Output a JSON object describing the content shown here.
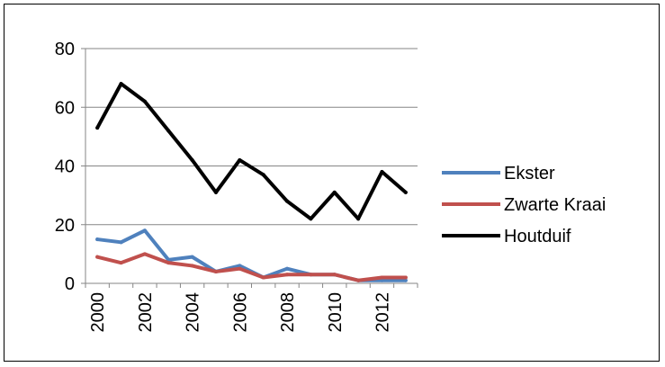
{
  "chart_data": {
    "type": "line",
    "x": [
      2000,
      2001,
      2002,
      2003,
      2004,
      2005,
      2006,
      2007,
      2008,
      2009,
      2010,
      2011,
      2012,
      2013
    ],
    "x_tick_labels": [
      "2000",
      "2002",
      "2004",
      "2006",
      "2008",
      "2010",
      "2012"
    ],
    "y_tick_labels": [
      "0",
      "20",
      "40",
      "60",
      "80"
    ],
    "ylim": [
      0,
      80
    ],
    "grid": "horizontal",
    "legend_position": "right",
    "title": "",
    "xlabel": "",
    "ylabel": "",
    "series": [
      {
        "name": "Ekster",
        "color": "#4f81bd",
        "values": [
          15,
          14,
          18,
          8,
          9,
          4,
          6,
          2,
          5,
          3,
          3,
          1,
          1,
          1
        ]
      },
      {
        "name": "Zwarte Kraai",
        "color": "#c0504d",
        "values": [
          9,
          7,
          10,
          7,
          6,
          4,
          5,
          2,
          3,
          3,
          3,
          1,
          2,
          2
        ]
      },
      {
        "name": "Houtduif",
        "color": "#000000",
        "values": [
          53,
          68,
          62,
          52,
          42,
          31,
          42,
          37,
          28,
          22,
          31,
          22,
          38,
          31
        ]
      }
    ]
  }
}
